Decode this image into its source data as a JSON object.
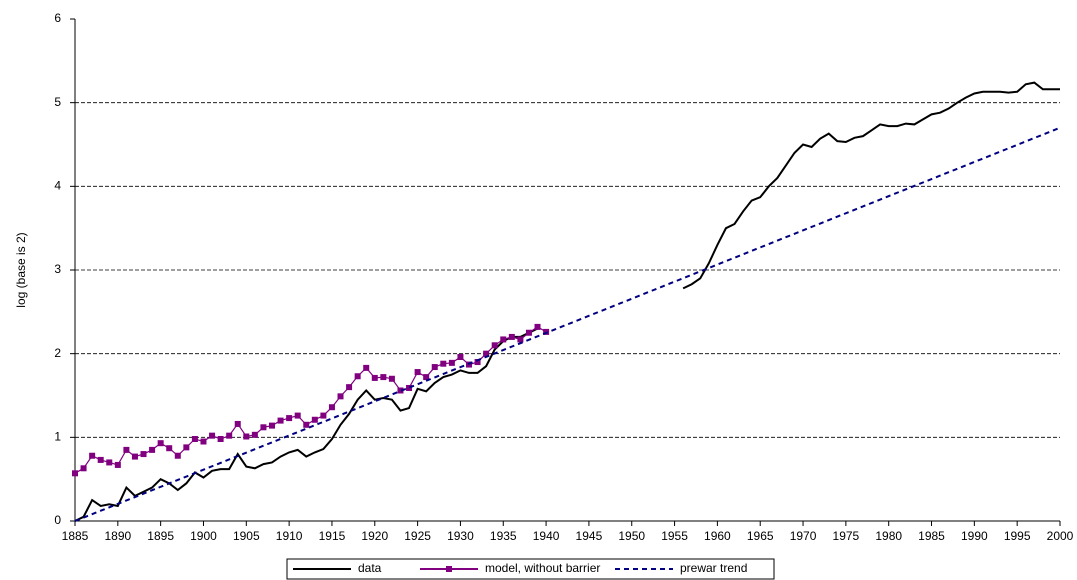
{
  "chart_data": {
    "type": "line",
    "ylabel": "log (base is 2)",
    "xlim": [
      1885,
      2000
    ],
    "ylim": [
      0,
      6
    ],
    "xticks": [
      1885,
      1890,
      1895,
      1900,
      1905,
      1910,
      1915,
      1920,
      1925,
      1930,
      1935,
      1940,
      1945,
      1950,
      1955,
      1960,
      1965,
      1970,
      1975,
      1980,
      1985,
      1990,
      1995,
      2000
    ],
    "yticks": [
      0,
      1,
      2,
      3,
      4,
      5,
      6
    ],
    "grid": true,
    "legend": "bottom",
    "series": [
      {
        "name": "data",
        "color": "#000000",
        "style": "solid",
        "marker": false,
        "x": [
          1885,
          1886,
          1887,
          1888,
          1889,
          1890,
          1891,
          1892,
          1893,
          1894,
          1895,
          1896,
          1897,
          1898,
          1899,
          1900,
          1901,
          1902,
          1903,
          1904,
          1905,
          1906,
          1907,
          1908,
          1909,
          1910,
          1911,
          1912,
          1913,
          1914,
          1915,
          1916,
          1917,
          1918,
          1919,
          1920,
          1921,
          1922,
          1923,
          1924,
          1925,
          1926,
          1927,
          1928,
          1929,
          1930,
          1931,
          1932,
          1933,
          1934,
          1935,
          1936,
          1937,
          1938,
          1939,
          1940,
          1941,
          1942,
          1943,
          1944,
          1945,
          1946,
          1947,
          1948,
          1949,
          1950,
          1951,
          1952,
          1953,
          1954,
          1955,
          1956,
          1957,
          1958,
          1959,
          1960,
          1961,
          1962,
          1963,
          1964,
          1965,
          1966,
          1967,
          1968,
          1969,
          1970,
          1971,
          1972,
          1973,
          1974,
          1975,
          1976,
          1977,
          1978,
          1979,
          1980,
          1981,
          1982,
          1983,
          1984,
          1985,
          1986,
          1987,
          1988,
          1989,
          1990,
          1991,
          1992,
          1993,
          1994,
          1995,
          1996,
          1997,
          1998,
          1999,
          2000
        ],
        "values": [
          0.0,
          0.05,
          0.25,
          0.18,
          0.2,
          0.18,
          0.4,
          0.3,
          0.35,
          0.4,
          0.5,
          0.45,
          0.37,
          0.45,
          0.58,
          0.52,
          0.6,
          0.62,
          0.62,
          0.8,
          0.65,
          0.63,
          0.68,
          0.7,
          0.77,
          0.82,
          0.85,
          0.77,
          0.82,
          0.86,
          0.98,
          1.15,
          1.28,
          1.45,
          1.56,
          1.45,
          1.47,
          1.45,
          1.32,
          1.35,
          1.58,
          1.55,
          1.65,
          1.72,
          1.75,
          1.8,
          1.77,
          1.77,
          1.85,
          2.05,
          2.15,
          2.2,
          2.2,
          2.25,
          2.3,
          null,
          null,
          null,
          null,
          null,
          null,
          null,
          null,
          null,
          null,
          null,
          null,
          null,
          null,
          null,
          null,
          2.78,
          2.83,
          2.9,
          3.08,
          3.3,
          3.5,
          3.55,
          3.7,
          3.83,
          3.87,
          4.0,
          4.1,
          4.25,
          4.4,
          4.5,
          4.47,
          4.57,
          4.63,
          4.54,
          4.53,
          4.58,
          4.6,
          4.67,
          4.74,
          4.72,
          4.72,
          4.75,
          4.74,
          4.8,
          4.86,
          4.88,
          4.93,
          5.0,
          5.06,
          5.11,
          5.13,
          5.13,
          5.13,
          5.12,
          5.13,
          5.22,
          5.24,
          5.16,
          5.16,
          5.16
        ]
      },
      {
        "name": "model, without barrier",
        "color": "#800080",
        "style": "solid",
        "marker": true,
        "x": [
          1885,
          1886,
          1887,
          1888,
          1889,
          1890,
          1891,
          1892,
          1893,
          1894,
          1895,
          1896,
          1897,
          1898,
          1899,
          1900,
          1901,
          1902,
          1903,
          1904,
          1905,
          1906,
          1907,
          1908,
          1909,
          1910,
          1911,
          1912,
          1913,
          1914,
          1915,
          1916,
          1917,
          1918,
          1919,
          1920,
          1921,
          1922,
          1923,
          1924,
          1925,
          1926,
          1927,
          1928,
          1929,
          1930,
          1931,
          1932,
          1933,
          1934,
          1935,
          1936,
          1937,
          1938,
          1939,
          1940
        ],
        "values": [
          0.57,
          0.63,
          0.78,
          0.73,
          0.7,
          0.67,
          0.85,
          0.77,
          0.8,
          0.85,
          0.93,
          0.87,
          0.78,
          0.88,
          0.98,
          0.95,
          1.02,
          0.98,
          1.02,
          1.16,
          1.01,
          1.03,
          1.12,
          1.14,
          1.2,
          1.23,
          1.26,
          1.15,
          1.21,
          1.26,
          1.36,
          1.49,
          1.6,
          1.73,
          1.83,
          1.71,
          1.72,
          1.7,
          1.56,
          1.59,
          1.78,
          1.72,
          1.84,
          1.88,
          1.89,
          1.96,
          1.87,
          1.9,
          2.0,
          2.1,
          2.17,
          2.2,
          2.17,
          2.25,
          2.32,
          2.26
        ]
      },
      {
        "name": "prewar trend",
        "color": "#000080",
        "style": "dashed",
        "marker": false,
        "x": [
          1885,
          2000
        ],
        "values": [
          0,
          4.7
        ]
      }
    ]
  }
}
